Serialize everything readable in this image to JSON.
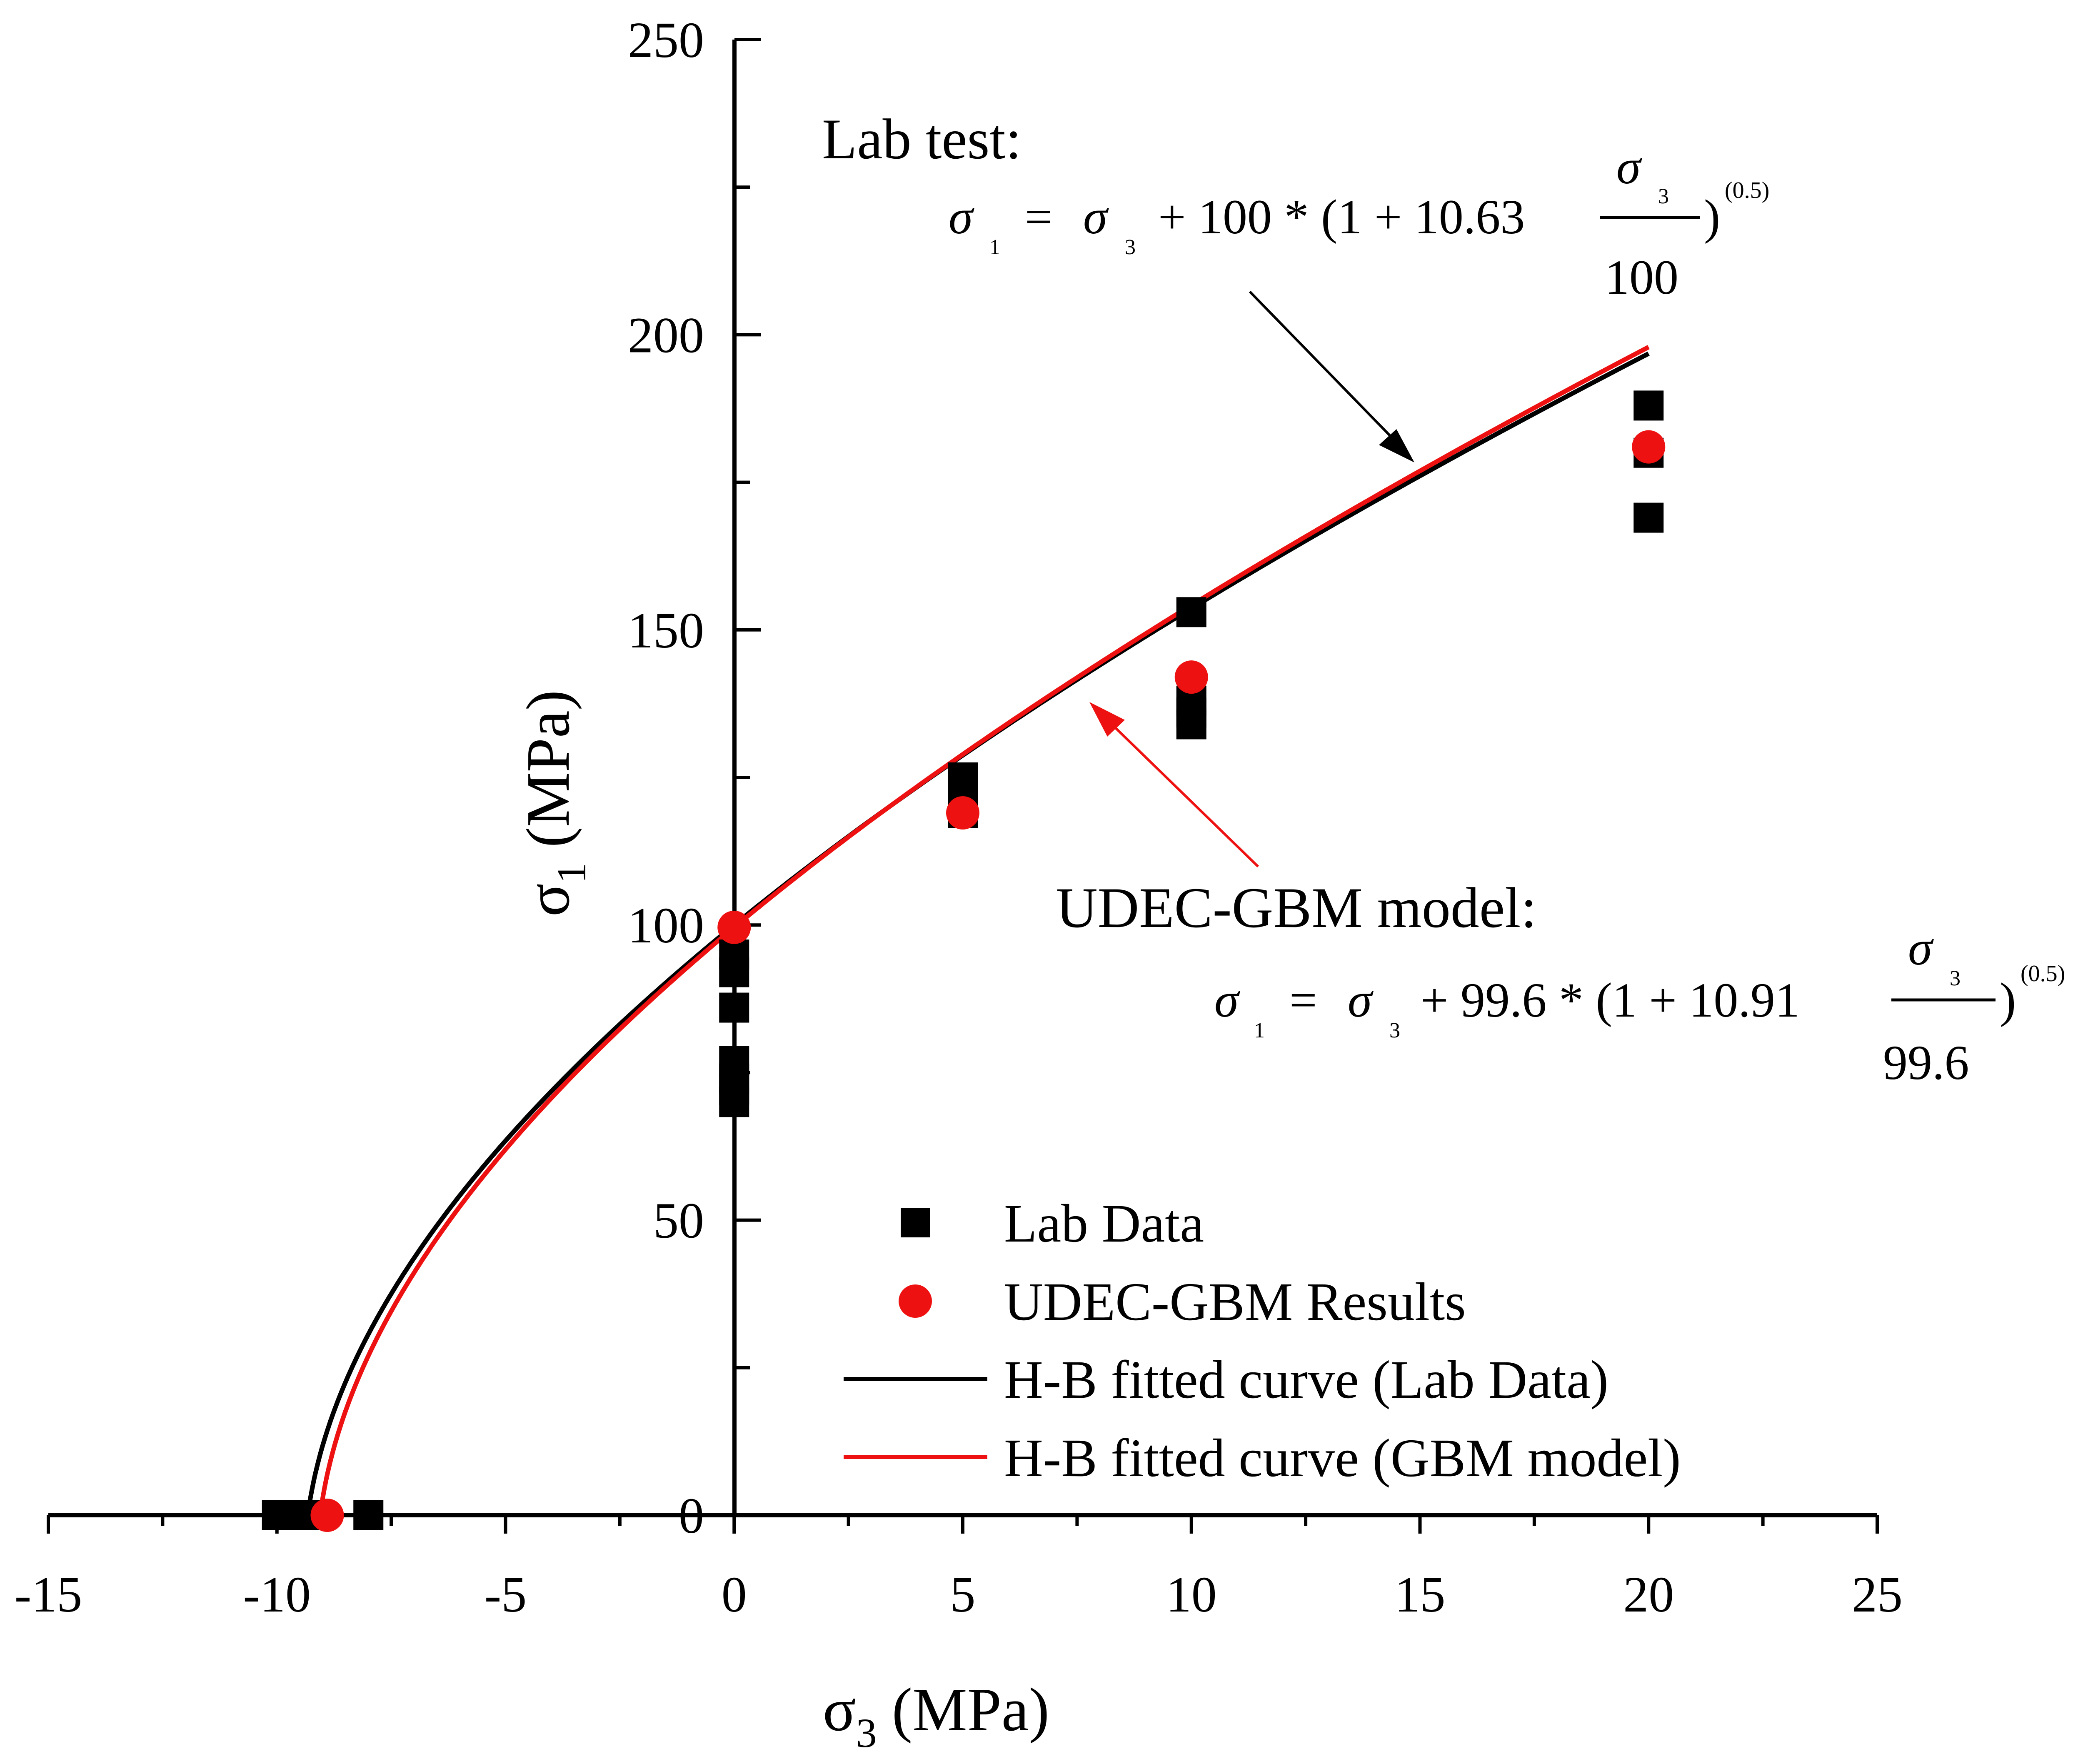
{
  "chart_data": {
    "type": "scatter",
    "title": "",
    "xlabel_main": "σ",
    "xlabel_sub": "3",
    "xlabel_unit": "(MPa)",
    "ylabel_main": "σ",
    "ylabel_sub": "1",
    "ylabel_unit": "(MPa)",
    "xlim": [
      -15,
      25
    ],
    "ylim": [
      0,
      250
    ],
    "xticks": [
      -15,
      -10,
      -5,
      0,
      5,
      10,
      15,
      20,
      25
    ],
    "yticks": [
      0,
      50,
      100,
      150,
      200,
      250
    ],
    "xtick_labels": [
      "-15",
      "-10",
      "-5",
      "0",
      "5",
      "10",
      "15",
      "20",
      "25"
    ],
    "ytick_labels": [
      "0",
      "50",
      "100",
      "150",
      "200",
      "250"
    ],
    "grid": false,
    "legend_position": "bottom-right",
    "series": [
      {
        "name": "Lab Data",
        "kind": "scatter",
        "marker": "square",
        "color": "#000000",
        "x": [
          -10.0,
          -9.8,
          -9.6,
          -9.4,
          -9.2,
          -8.0,
          0,
          0,
          0,
          0,
          0,
          0,
          0,
          5,
          5,
          5,
          10,
          10,
          10,
          10,
          20,
          20,
          20
        ],
        "y": [
          0,
          0,
          0,
          0,
          0,
          0,
          92,
          95,
          86,
          77,
          74,
          72,
          70,
          125,
          122,
          119,
          153,
          138,
          136,
          134,
          188,
          180,
          169
        ]
      },
      {
        "name": "UDEC-GBM Results",
        "kind": "scatter",
        "marker": "circle",
        "color": "#ee1111",
        "x": [
          -8.9,
          0,
          5,
          10,
          20
        ],
        "y": [
          0,
          99.6,
          119,
          142,
          181
        ]
      },
      {
        "name": "H-B fitted curve (Lab Data)",
        "kind": "line",
        "color": "#000000",
        "sigma_ci": 100,
        "m": 10.63,
        "a": 0.5,
        "x_range": [
          -9.4,
          20
        ]
      },
      {
        "name": "H-B fitted curve (GBM model)",
        "kind": "line",
        "color": "#ee1111",
        "sigma_ci": 99.6,
        "m": 10.91,
        "a": 0.5,
        "x_range": [
          -9.13,
          20
        ]
      }
    ]
  },
  "annotations": {
    "lab": {
      "title": "Lab test:",
      "sym": "σ",
      "sub1": "1",
      "sub3": "3",
      "eq": "=",
      "plus_const": "+ 100 * (1 + 10.63",
      "close": ")",
      "exp": "(0.5)",
      "den": "100"
    },
    "gbm": {
      "title": "UDEC-GBM model:",
      "sym": "σ",
      "sub1": "1",
      "sub3": "3",
      "eq": "=",
      "plus_const": "+ 99.6 * (1 + 10.91",
      "close": ")",
      "exp": "(0.5)",
      "den": "99.6"
    }
  },
  "colors": {
    "black": "#000000",
    "red": "#ee1111",
    "background": "#ffffff"
  }
}
